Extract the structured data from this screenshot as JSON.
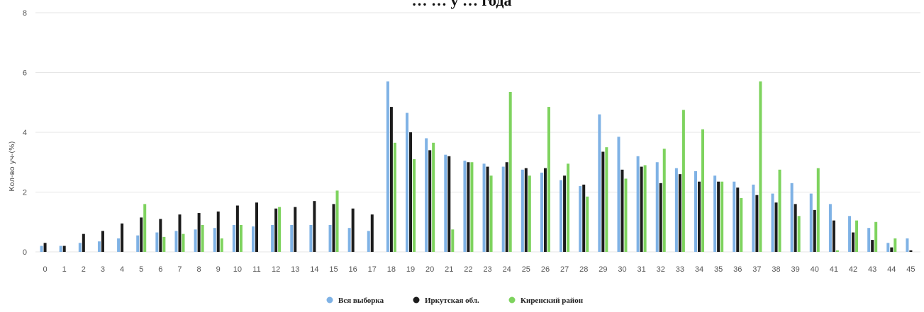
{
  "chart_data": {
    "type": "bar",
    "title": "… … у … года",
    "xlabel": "",
    "ylabel": "Кол-во уч-(%)",
    "ylim": [
      0,
      8
    ],
    "yticks": [
      0,
      2,
      4,
      6,
      8
    ],
    "grid": true,
    "legend_position": "bottom",
    "categories": [
      "0",
      "1",
      "2",
      "3",
      "4",
      "5",
      "6",
      "7",
      "8",
      "9",
      "10",
      "11",
      "12",
      "13",
      "14",
      "15",
      "16",
      "17",
      "18",
      "19",
      "20",
      "21",
      "22",
      "23",
      "24",
      "25",
      "26",
      "27",
      "28",
      "29",
      "30",
      "31",
      "32",
      "33",
      "34",
      "35",
      "36",
      "37",
      "38",
      "39",
      "40",
      "41",
      "42",
      "43",
      "44",
      "45"
    ],
    "series": [
      {
        "name": "Вся выборка",
        "color": "#7fb2e5",
        "values": [
          0.2,
          0.2,
          0.3,
          0.35,
          0.45,
          0.55,
          0.65,
          0.7,
          0.75,
          0.8,
          0.9,
          0.85,
          0.9,
          0.9,
          0.9,
          0.9,
          0.8,
          0.7,
          5.7,
          4.65,
          3.8,
          3.25,
          3.05,
          2.95,
          2.85,
          2.75,
          2.65,
          2.4,
          2.2,
          4.6,
          3.85,
          3.2,
          3.0,
          2.8,
          2.7,
          2.55,
          2.35,
          2.25,
          1.95,
          2.3,
          1.95,
          1.6,
          1.2,
          0.8,
          0.3,
          0.45
        ]
      },
      {
        "name": "Иркутская обл.",
        "color": "#1c1c1c",
        "values": [
          0.3,
          0.2,
          0.6,
          0.7,
          0.95,
          1.15,
          1.1,
          1.25,
          1.3,
          1.35,
          1.55,
          1.65,
          1.45,
          1.5,
          1.7,
          1.6,
          1.45,
          1.25,
          4.85,
          4.0,
          3.4,
          3.2,
          3.0,
          2.85,
          3.0,
          2.8,
          2.8,
          2.55,
          2.25,
          3.35,
          2.75,
          2.85,
          2.3,
          2.6,
          2.35,
          2.35,
          2.15,
          1.9,
          1.65,
          1.6,
          1.4,
          1.05,
          0.65,
          0.4,
          0.15,
          0.05
        ]
      },
      {
        "name": "Киренский район",
        "color": "#7ed35e",
        "values": [
          0.0,
          0.0,
          0.0,
          0.0,
          0.0,
          1.6,
          0.5,
          0.6,
          0.9,
          0.45,
          0.9,
          0.0,
          1.5,
          0.0,
          0.0,
          2.05,
          0.0,
          0.0,
          3.65,
          3.1,
          3.65,
          0.75,
          3.0,
          2.55,
          5.35,
          2.55,
          4.85,
          2.95,
          1.85,
          3.5,
          2.45,
          2.9,
          3.45,
          4.75,
          4.1,
          2.35,
          1.8,
          5.7,
          2.75,
          1.2,
          2.8,
          0.05,
          1.05,
          1.0,
          0.45,
          0.0
        ]
      }
    ]
  }
}
